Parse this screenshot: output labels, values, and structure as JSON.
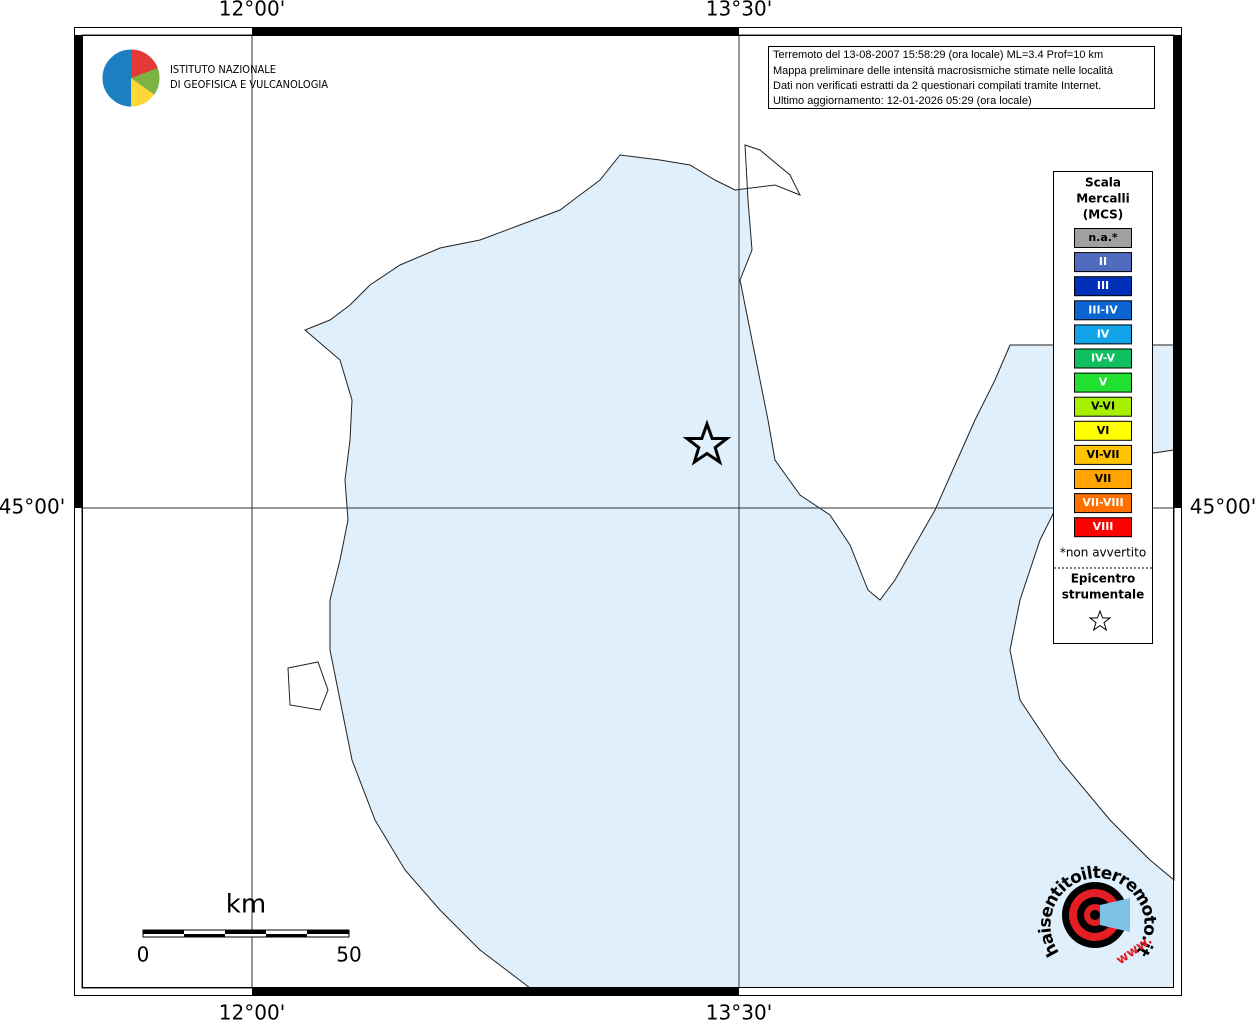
{
  "logo": {
    "line1": "ISTITUTO NAZIONALE",
    "line2": "DI GEOFISICA E VULCANOLOGIA"
  },
  "axes": {
    "top": [
      "12°00'",
      "13°30'"
    ],
    "bottom": [
      "12°00'",
      "13°30'"
    ],
    "left": "45°00'",
    "right": "45°00'"
  },
  "info": [
    "Terremoto del 13-08-2007 15:58:29 (ora locale) ML=3.4 Prof=10 km",
    "Mappa preliminare delle intensità macrosismiche stimate nelle località",
    "Dati non verificati estratti da 2 questionari compilati tramite Internet.",
    "Ultimo aggiornamento: 12-01-2026 05:29 (ora locale)"
  ],
  "legend": {
    "title": [
      "Scala",
      "Mercalli",
      "(MCS)"
    ],
    "items": [
      {
        "label": "n.a.*",
        "color": "#a0a0a0"
      },
      {
        "label": "II",
        "color": "#4f6cbf"
      },
      {
        "label": "III",
        "color": "#0030b8"
      },
      {
        "label": "III-IV",
        "color": "#0a64d2"
      },
      {
        "label": "IV",
        "color": "#12a2e8"
      },
      {
        "label": "IV-V",
        "color": "#10c060"
      },
      {
        "label": "V",
        "color": "#22e030"
      },
      {
        "label": "V-VI",
        "color": "#a8f000"
      },
      {
        "label": "VI",
        "color": "#ffff00"
      },
      {
        "label": "VI-VII",
        "color": "#ffc400"
      },
      {
        "label": "VII",
        "color": "#ffa400"
      },
      {
        "label": "VII-VIII",
        "color": "#ff7000"
      },
      {
        "label": "VIII",
        "color": "#ff0000"
      }
    ],
    "note": "*non avvertito",
    "epicenter": [
      "Epicentro",
      "strumentale"
    ]
  },
  "scale": {
    "unit": "km",
    "start": "0",
    "end": "50"
  },
  "badge": {
    "site": "haisentitoilterremoto.it",
    "www": "www."
  }
}
